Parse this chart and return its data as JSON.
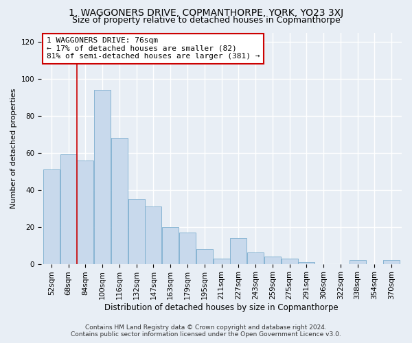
{
  "title": "1, WAGGONERS DRIVE, COPMANTHORPE, YORK, YO23 3XJ",
  "subtitle": "Size of property relative to detached houses in Copmanthorpe",
  "xlabel": "Distribution of detached houses by size in Copmanthorpe",
  "ylabel": "Number of detached properties",
  "bar_color": "#c8d9ec",
  "bar_edge_color": "#7aadce",
  "bin_labels": [
    "52sqm",
    "68sqm",
    "84sqm",
    "100sqm",
    "116sqm",
    "132sqm",
    "147sqm",
    "163sqm",
    "179sqm",
    "195sqm",
    "211sqm",
    "227sqm",
    "243sqm",
    "259sqm",
    "275sqm",
    "291sqm",
    "306sqm",
    "322sqm",
    "338sqm",
    "354sqm",
    "370sqm"
  ],
  "bar_heights": [
    51,
    59,
    56,
    94,
    68,
    35,
    31,
    20,
    17,
    8,
    3,
    14,
    6,
    4,
    3,
    1,
    0,
    0,
    2,
    0,
    2
  ],
  "ylim": [
    0,
    125
  ],
  "yticks": [
    0,
    20,
    40,
    60,
    80,
    100,
    120
  ],
  "vline_color": "#cc0000",
  "annotation_title": "1 WAGGONERS DRIVE: 76sqm",
  "annotation_line1": "← 17% of detached houses are smaller (82)",
  "annotation_line2": "81% of semi-detached houses are larger (381) →",
  "annotation_box_color": "#ffffff",
  "annotation_box_edge": "#cc0000",
  "bg_color": "#e8eef5",
  "footnote1": "Contains HM Land Registry data © Crown copyright and database right 2024.",
  "footnote2": "Contains public sector information licensed under the Open Government Licence v3.0.",
  "grid_color": "#ffffff",
  "title_fontsize": 10,
  "subtitle_fontsize": 9,
  "annot_fontsize": 8,
  "xlabel_fontsize": 8.5,
  "ylabel_fontsize": 8,
  "tick_fontsize": 7.5,
  "footnote_fontsize": 6.5
}
